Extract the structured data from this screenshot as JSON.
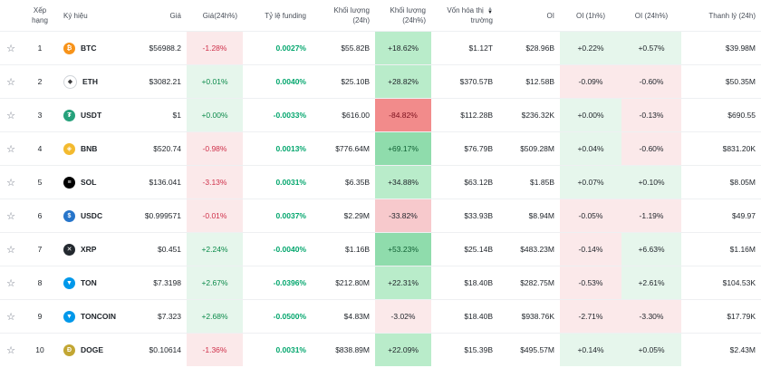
{
  "headers": {
    "rank": "Xếp hạng",
    "symbol": "Ký hiệu",
    "price": "Giá",
    "change24": "Giá(24h%)",
    "funding": "Tỷ lệ funding",
    "volume24": "Khối lượng (24h)",
    "volume24pct": "Khối lượng (24h%)",
    "mcap_line1": "Vốn hóa thị",
    "mcap_line2": "trường",
    "oi": "OI",
    "oi1h": "OI (1h%)",
    "oi24h": "OI (24h%)",
    "liq24": "Thanh lý (24h)"
  },
  "colors": {
    "positive": "#0b8a4a",
    "negative": "#cf304a",
    "funding": "#03a66d"
  },
  "rows": [
    {
      "rank": "1",
      "symbol": "BTC",
      "icon": "btc-icon",
      "icon_color": "#f7931a",
      "icon_glyph": "₿",
      "price": "$56988.2",
      "change24": "-1.28%",
      "funding": "0.0027%",
      "volume": "$55.82B",
      "volume_pct": "+18.62%",
      "vol_bg": "bg-pos-mid",
      "mcap": "$1.12T",
      "oi": "$28.96B",
      "oi1h": "+0.22%",
      "oi24h": "+0.57%",
      "liq": "$39.98M"
    },
    {
      "rank": "2",
      "symbol": "ETH",
      "icon": "eth-icon",
      "icon_color": "#ffffff",
      "icon_glyph": "◆",
      "price": "$3082.21",
      "change24": "+0.01%",
      "funding": "0.0040%",
      "volume": "$25.10B",
      "volume_pct": "+28.82%",
      "vol_bg": "bg-pos-mid",
      "mcap": "$370.57B",
      "oi": "$12.58B",
      "oi1h": "-0.09%",
      "oi24h": "-0.60%",
      "liq": "$50.35M"
    },
    {
      "rank": "3",
      "symbol": "USDT",
      "icon": "usdt-icon",
      "icon_color": "#26a17b",
      "icon_glyph": "₮",
      "price": "$1",
      "change24": "+0.00%",
      "funding": "-0.0033%",
      "volume": "$616.00",
      "volume_pct": "-84.82%",
      "vol_bg": "bg-neg-strong",
      "mcap": "$112.28B",
      "oi": "$236.32K",
      "oi1h": "+0.00%",
      "oi24h": "-0.13%",
      "liq": "$690.55"
    },
    {
      "rank": "4",
      "symbol": "BNB",
      "icon": "bnb-icon",
      "icon_color": "#f3ba2f",
      "icon_glyph": "◈",
      "price": "$520.74",
      "change24": "-0.98%",
      "funding": "0.0013%",
      "volume": "$776.64M",
      "volume_pct": "+69.17%",
      "vol_bg": "bg-pos-strong",
      "mcap": "$76.79B",
      "oi": "$509.28M",
      "oi1h": "+0.04%",
      "oi24h": "-0.60%",
      "liq": "$831.20K"
    },
    {
      "rank": "5",
      "symbol": "SOL",
      "icon": "sol-icon",
      "icon_color": "#000000",
      "icon_glyph": "≡",
      "price": "$136.041",
      "change24": "-3.13%",
      "funding": "0.0031%",
      "volume": "$6.35B",
      "volume_pct": "+34.88%",
      "vol_bg": "bg-pos-mid",
      "mcap": "$63.12B",
      "oi": "$1.85B",
      "oi1h": "+0.07%",
      "oi24h": "+0.10%",
      "liq": "$8.05M"
    },
    {
      "rank": "6",
      "symbol": "USDC",
      "icon": "usdc-icon",
      "icon_color": "#2775ca",
      "icon_glyph": "$",
      "price": "$0.999571",
      "change24": "-0.01%",
      "funding": "0.0037%",
      "volume": "$2.29M",
      "volume_pct": "-33.82%",
      "vol_bg": "bg-neg-mid",
      "mcap": "$33.93B",
      "oi": "$8.94M",
      "oi1h": "-0.05%",
      "oi24h": "-1.19%",
      "liq": "$49.97"
    },
    {
      "rank": "7",
      "symbol": "XRP",
      "icon": "xrp-icon",
      "icon_color": "#23292f",
      "icon_glyph": "✕",
      "price": "$0.451",
      "change24": "+2.24%",
      "funding": "-0.0040%",
      "volume": "$1.16B",
      "volume_pct": "+53.23%",
      "vol_bg": "bg-pos-strong",
      "mcap": "$25.14B",
      "oi": "$483.23M",
      "oi1h": "-0.14%",
      "oi24h": "+6.63%",
      "liq": "$1.16M"
    },
    {
      "rank": "8",
      "symbol": "TON",
      "icon": "ton-icon",
      "icon_color": "#0098ea",
      "icon_glyph": "▼",
      "price": "$7.3198",
      "change24": "+2.67%",
      "funding": "-0.0396%",
      "volume": "$212.80M",
      "volume_pct": "+22.31%",
      "vol_bg": "bg-pos-mid",
      "mcap": "$18.40B",
      "oi": "$282.75M",
      "oi1h": "-0.53%",
      "oi24h": "+2.61%",
      "liq": "$104.53K"
    },
    {
      "rank": "9",
      "symbol": "TONCOIN",
      "icon": "toncoin-icon",
      "icon_color": "#0098ea",
      "icon_glyph": "▼",
      "price": "$7.323",
      "change24": "+2.68%",
      "funding": "-0.0500%",
      "volume": "$4.83M",
      "volume_pct": "-3.02%",
      "vol_bg": "bg-neg",
      "mcap": "$18.40B",
      "oi": "$938.76K",
      "oi1h": "-2.71%",
      "oi24h": "-3.30%",
      "liq": "$17.79K"
    },
    {
      "rank": "10",
      "symbol": "DOGE",
      "icon": "doge-icon",
      "icon_color": "#c2a633",
      "icon_glyph": "Ð",
      "price": "$0.10614",
      "change24": "-1.36%",
      "funding": "0.0031%",
      "volume": "$838.89M",
      "volume_pct": "+22.09%",
      "vol_bg": "bg-pos-mid",
      "mcap": "$15.39B",
      "oi": "$495.57M",
      "oi1h": "+0.14%",
      "oi24h": "+0.05%",
      "liq": "$2.43M"
    }
  ]
}
